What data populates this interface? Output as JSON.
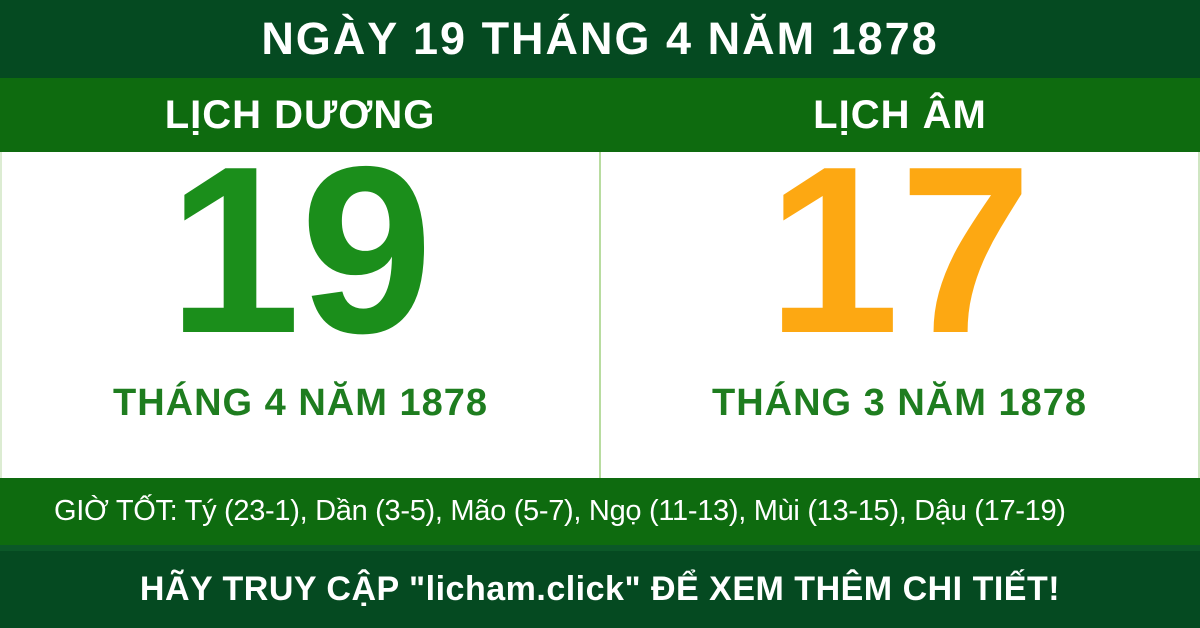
{
  "header": {
    "title": "NGÀY 19 THÁNG 4 NĂM 1878"
  },
  "columns": {
    "solar": {
      "header": "LỊCH DƯƠNG",
      "day": "19",
      "month_year": "THÁNG 4 NĂM 1878"
    },
    "lunar": {
      "header": "LỊCH ÂM",
      "day": "17",
      "month_year": "THÁNG 3 NĂM 1878"
    }
  },
  "good_hours": {
    "text": "GIỜ TỐT: Tý (23-1), Dần (3-5), Mão (5-7), Ngọ (11-13), Mùi (13-15), Dậu (17-19)"
  },
  "footer": {
    "cta": "HÃY TRUY CẬP \"licham.click\" ĐỂ XEM THÊM CHI TIẾT!"
  },
  "colors": {
    "dark_green": "#054a21",
    "medium_green": "#0e6b0f",
    "solar_day_green": "#1b8e1b",
    "month_label_green": "#1e7d1f",
    "lunar_day_orange": "#fda812",
    "divider_light_green": "#b8dca0",
    "text_white": "#ffffff"
  }
}
